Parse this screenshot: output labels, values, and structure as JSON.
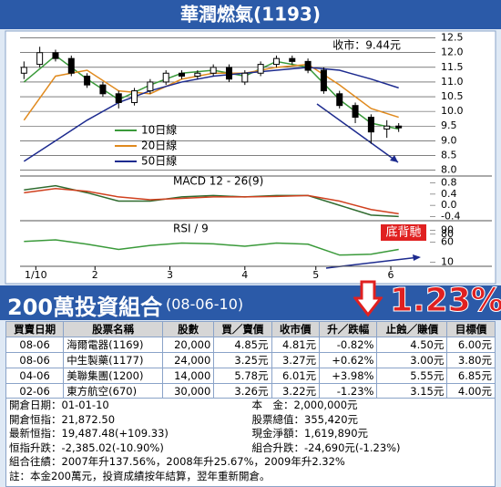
{
  "header": {
    "title": "華潤燃氣(1193)"
  },
  "chart_data": [
    {
      "type": "candlestick",
      "annotations": [
        "收市：9.44元"
      ],
      "legend": "left",
      "candle_color": "#000000",
      "x": [
        1,
        5,
        9,
        13,
        17,
        21,
        25,
        29,
        33,
        37,
        41,
        45,
        49,
        53,
        57,
        61,
        65,
        69,
        73,
        77,
        81,
        85,
        89,
        93,
        96
      ],
      "open": [
        11.3,
        11.6,
        12.0,
        11.8,
        11.2,
        10.9,
        10.6,
        10.3,
        10.7,
        11.0,
        11.3,
        11.2,
        11.3,
        11.5,
        11.0,
        11.3,
        11.6,
        11.8,
        11.7,
        11.4,
        10.6,
        10.2,
        9.8,
        9.4,
        9.5
      ],
      "high": [
        11.7,
        12.2,
        12.1,
        11.9,
        11.3,
        11.0,
        10.7,
        10.8,
        11.1,
        11.4,
        11.4,
        11.4,
        11.6,
        11.6,
        11.4,
        11.7,
        11.9,
        11.9,
        11.8,
        11.5,
        10.7,
        10.3,
        9.9,
        9.7,
        9.6
      ],
      "low": [
        11.1,
        11.5,
        11.7,
        11.2,
        10.8,
        10.5,
        10.1,
        10.2,
        10.6,
        10.9,
        11.1,
        11.1,
        11.2,
        11.0,
        10.9,
        11.2,
        11.5,
        11.6,
        11.3,
        10.6,
        10.1,
        9.6,
        8.9,
        9.1,
        9.3
      ],
      "close": [
        11.5,
        12.0,
        11.8,
        11.3,
        10.9,
        10.6,
        10.3,
        10.7,
        11.0,
        11.3,
        11.2,
        11.3,
        11.5,
        11.1,
        11.3,
        11.6,
        11.8,
        11.7,
        11.4,
        10.7,
        10.2,
        9.8,
        9.3,
        9.5,
        9.44
      ],
      "series": [
        {
          "name": "10日線",
          "color": "#3a9a3a",
          "x": [
            1,
            9,
            17,
            25,
            33,
            41,
            49,
            57,
            65,
            73,
            81,
            89,
            96
          ],
          "values": [
            11.0,
            11.9,
            11.1,
            10.4,
            10.9,
            11.3,
            11.4,
            11.2,
            11.7,
            11.5,
            10.4,
            9.6,
            9.4
          ]
        },
        {
          "name": "20日線",
          "color": "#e08a1e",
          "x": [
            1,
            9,
            17,
            25,
            33,
            41,
            49,
            57,
            65,
            73,
            81,
            89,
            96
          ],
          "values": [
            9.7,
            11.2,
            11.4,
            10.7,
            10.6,
            11.1,
            11.3,
            11.3,
            11.5,
            11.6,
            10.9,
            10.1,
            9.8
          ]
        },
        {
          "name": "50日線",
          "color": "#1d2b8f",
          "x": [
            1,
            9,
            17,
            25,
            33,
            41,
            49,
            57,
            65,
            73,
            81,
            89,
            96
          ],
          "values": [
            8.3,
            9.0,
            9.7,
            10.3,
            10.7,
            11.0,
            11.2,
            11.3,
            11.4,
            11.5,
            11.4,
            11.1,
            10.8
          ]
        }
      ],
      "xlim": [
        0,
        100
      ],
      "ylim": [
        7.8,
        12.55
      ],
      "yticks": [
        {
          "value": 8,
          "label": "8.0"
        },
        8.5,
        {
          "value": 9,
          "label": "9.0"
        },
        9.5,
        {
          "value": 10,
          "label": "10.0"
        },
        10.5,
        {
          "value": 11,
          "label": "11.0"
        },
        11.5,
        {
          "value": 12,
          "label": "12.0"
        },
        12.5
      ],
      "grid": true
    },
    {
      "type": "line",
      "title": "MACD 12 - 26(9)",
      "series": [
        {
          "color": "#2f6b2f",
          "x": [
            1,
            9,
            17,
            25,
            33,
            41,
            49,
            57,
            65,
            73,
            81,
            89,
            96
          ],
          "values": [
            0.55,
            0.7,
            0.45,
            0.15,
            0.15,
            0.3,
            0.35,
            0.3,
            0.35,
            0.35,
            0.0,
            -0.35,
            -0.4
          ]
        },
        {
          "color": "#d0401e",
          "x": [
            1,
            9,
            17,
            25,
            33,
            41,
            49,
            57,
            65,
            73,
            81,
            89,
            96
          ],
          "values": [
            0.45,
            0.6,
            0.5,
            0.3,
            0.2,
            0.25,
            0.3,
            0.3,
            0.32,
            0.35,
            0.15,
            -0.15,
            -0.3
          ]
        }
      ],
      "xlim": [
        0,
        100
      ],
      "ylim": [
        -0.55,
        0.95
      ],
      "yticks": [
        -0.4,
        {
          "value": 0,
          "label": "0.0"
        },
        0.4,
        0.8
      ],
      "grid": false
    },
    {
      "type": "line",
      "title": "RSI / 9",
      "annotations": [
        "底背馳"
      ],
      "series": [
        {
          "color": "#3a9a3a",
          "x": [
            1,
            9,
            17,
            25,
            33,
            41,
            49,
            57,
            65,
            73,
            81,
            89,
            96
          ],
          "values": [
            62,
            66,
            55,
            42,
            52,
            58,
            56,
            50,
            58,
            55,
            28,
            30,
            42
          ]
        }
      ],
      "xlim": [
        0,
        100
      ],
      "ylim": [
        0,
        100
      ],
      "yticks": [
        10,
        60,
        80,
        90
      ],
      "grid": false,
      "xticks": [
        {
          "value": 4,
          "label": "1/10"
        },
        {
          "value": 19,
          "label": "2"
        },
        {
          "value": 38,
          "label": "3"
        },
        {
          "value": 57,
          "label": "4"
        },
        {
          "value": 75,
          "label": "5"
        },
        {
          "value": 94,
          "label": "6"
        }
      ]
    }
  ],
  "portfolio": {
    "title": "200萬投資組合",
    "date": "(08-06-10)",
    "change": "1.23%",
    "table": {
      "columns": [
        "買賣日期",
        "股票名稱",
        "股數",
        "買／賣價",
        "收市價",
        "升／跌幅",
        "止蝕／賺價",
        "目標價"
      ],
      "rows": [
        [
          "08-06",
          "海爾電器(1169)",
          "20,000",
          "4.85元",
          "4.81元",
          "-0.82%",
          "4.50元",
          "6.00元"
        ],
        [
          "08-06",
          "中生製藥(1177)",
          "24,000",
          "3.25元",
          "3.27元",
          "+0.62%",
          "3.00元",
          "3.80元"
        ],
        [
          "04-06",
          "美聯集團(1200)",
          "14,000",
          "5.78元",
          "6.01元",
          "+3.98%",
          "5.55元",
          "6.85元"
        ],
        [
          "02-06",
          "東方航空(670)",
          "30,000",
          "3.26元",
          "3.22元",
          "-1.23%",
          "3.15元",
          "4.00元"
        ]
      ]
    },
    "summary": [
      [
        "開倉日期：01-01-10",
        "本　金：2,000,000元"
      ],
      [
        "開倉恒指：21,872.50",
        "股票總值：355,420元"
      ],
      [
        "最新恒指：19,487.48(+109.33)",
        "現金淨額：1,619,890元"
      ],
      [
        "恒指升跌：-2,385.02(-10.90%)",
        "組合升跌：-24,690元(-1.23%)"
      ]
    ],
    "notes": [
      "組合往績：2007年升137.56%，2008年升25.67%，2009年升2.32%",
      "註：本金200萬元，投資成績按年結算，翌年重新開倉。"
    ]
  }
}
